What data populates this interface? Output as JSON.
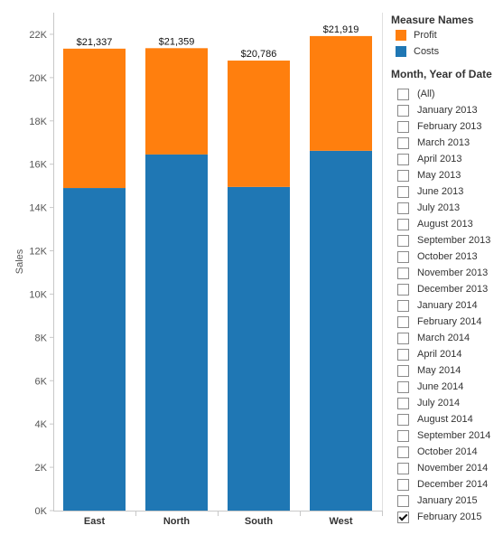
{
  "chart_data": {
    "type": "bar",
    "stacked": true,
    "categories": [
      "East",
      "North",
      "South",
      "West"
    ],
    "series": [
      {
        "name": "Costs",
        "color": "#1f77b4",
        "values": [
          14900,
          16450,
          14950,
          16620
        ]
      },
      {
        "name": "Profit",
        "color": "#ff7f0e",
        "values": [
          6437,
          4909,
          5836,
          5299
        ]
      }
    ],
    "data_labels": [
      "$21,337",
      "$21,359",
      "$20,786",
      "$21,919"
    ],
    "ylabel": "Sales",
    "ylim": [
      0,
      23000
    ],
    "yticks": [
      0,
      2000,
      4000,
      6000,
      8000,
      10000,
      12000,
      14000,
      16000,
      18000,
      20000,
      22000
    ],
    "ytick_labels": [
      "0K",
      "2K",
      "4K",
      "6K",
      "8K",
      "10K",
      "12K",
      "14K",
      "16K",
      "18K",
      "20K",
      "22K"
    ],
    "grid": false,
    "legend_position": "right"
  },
  "legend": {
    "title": "Measure Names",
    "items": [
      {
        "label": "Profit",
        "color": "#ff7f0e"
      },
      {
        "label": "Costs",
        "color": "#1f77b4"
      }
    ]
  },
  "filter": {
    "title": "Month, Year of Date",
    "items": [
      {
        "label": "(All)",
        "checked": false
      },
      {
        "label": "January 2013",
        "checked": false
      },
      {
        "label": "February 2013",
        "checked": false
      },
      {
        "label": "March 2013",
        "checked": false
      },
      {
        "label": "April 2013",
        "checked": false
      },
      {
        "label": "May 2013",
        "checked": false
      },
      {
        "label": "June 2013",
        "checked": false
      },
      {
        "label": "July 2013",
        "checked": false
      },
      {
        "label": "August 2013",
        "checked": false
      },
      {
        "label": "September 2013",
        "checked": false
      },
      {
        "label": "October 2013",
        "checked": false
      },
      {
        "label": "November 2013",
        "checked": false
      },
      {
        "label": "December 2013",
        "checked": false
      },
      {
        "label": "January 2014",
        "checked": false
      },
      {
        "label": "February 2014",
        "checked": false
      },
      {
        "label": "March 2014",
        "checked": false
      },
      {
        "label": "April 2014",
        "checked": false
      },
      {
        "label": "May 2014",
        "checked": false
      },
      {
        "label": "June 2014",
        "checked": false
      },
      {
        "label": "July 2014",
        "checked": false
      },
      {
        "label": "August 2014",
        "checked": false
      },
      {
        "label": "September 2014",
        "checked": false
      },
      {
        "label": "October 2014",
        "checked": false
      },
      {
        "label": "November 2014",
        "checked": false
      },
      {
        "label": "December 2014",
        "checked": false
      },
      {
        "label": "January 2015",
        "checked": false
      },
      {
        "label": "February 2015",
        "checked": true
      }
    ]
  }
}
